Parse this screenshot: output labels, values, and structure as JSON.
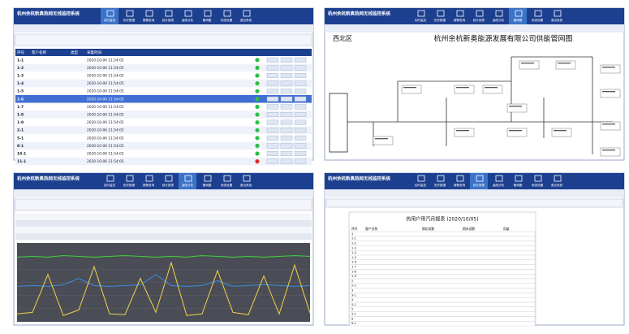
{
  "system_title": "杭州余杭新奥热网无线监控系统",
  "nav": [
    "实时监控",
    "历史数据",
    "报警查询",
    "统计报表",
    "曲线分析",
    "管网图",
    "系统设置",
    "退出系统"
  ],
  "monitor": {
    "headers": [
      "序号",
      "客户名称",
      "类型",
      "采集时间"
    ],
    "rows": [
      [
        "1-1",
        "2020-10-06 11:54:05"
      ],
      [
        "1-2",
        "2020-10-06 11:54:05"
      ],
      [
        "1-3",
        "2020-10-06 11:54:05"
      ],
      [
        "1-4",
        "2020-10-06 11:54:05"
      ],
      [
        "1-5",
        "2020-10-06 11:54:05"
      ],
      [
        "1-6",
        "2020-10-06 11:54:05"
      ],
      [
        "1-7",
        "2020-10-06 11:54:05"
      ],
      [
        "1-8",
        "2020-10-06 11:54:05"
      ],
      [
        "1-9",
        "2020-10-06 11:54:05"
      ],
      [
        "2-1",
        "2020-10-06 11:54:05"
      ],
      [
        "5-1",
        "2020-10-06 11:54:05"
      ],
      [
        "8-1",
        "2020-10-06 11:54:05"
      ],
      [
        "10-1",
        "2020-10-06 11:54:05"
      ],
      [
        "11-1",
        "2020-10-06 11:54:05"
      ]
    ]
  },
  "network": {
    "region": "西北区",
    "title": "杭州余杭新奥能源发展有限公司供能管网图"
  },
  "trend": {
    "ylim": [
      0,
      100
    ],
    "series": [
      {
        "color": "#3ad13a",
        "values": [
          82,
          83,
          82,
          84,
          83,
          82,
          83,
          84,
          83,
          82,
          83,
          82,
          84,
          83,
          82,
          83,
          82,
          83,
          84,
          83
        ]
      },
      {
        "color": "#3a8ee6",
        "values": [
          45,
          46,
          45,
          47,
          55,
          46,
          45,
          46,
          47,
          60,
          46,
          45,
          46,
          52,
          45,
          46,
          47,
          46,
          45,
          46
        ]
      },
      {
        "color": "#f2d24b",
        "values": [
          10,
          12,
          60,
          8,
          15,
          70,
          10,
          9,
          55,
          12,
          75,
          8,
          10,
          65,
          12,
          9,
          58,
          10,
          72,
          11
        ]
      }
    ]
  },
  "report": {
    "title": "热用户用汽月报表 (2020/10/05)",
    "headers": [
      "序号",
      "客户名称",
      "期初读数",
      "期末读数",
      "用量"
    ],
    "rows": [
      "1",
      "1-1",
      "1-2",
      "1-3",
      "1-4",
      "1-5",
      "1-6",
      "1-7",
      "1-8",
      "1-9",
      "2",
      "2-1",
      "3",
      "3-1",
      "4",
      "4-1",
      "5",
      "5-1",
      "6",
      "6-1"
    ]
  }
}
